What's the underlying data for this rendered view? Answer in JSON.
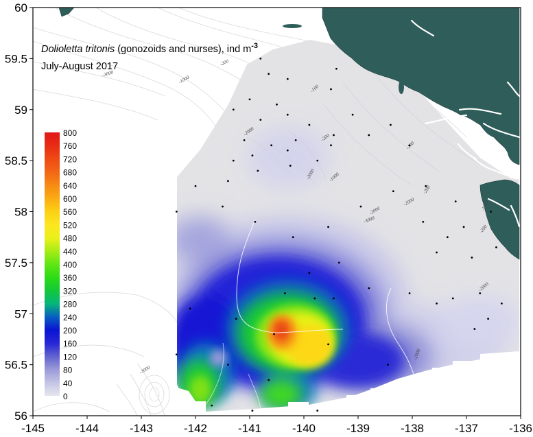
{
  "title": {
    "species": "Dolioletta tritonis",
    "rest": " (gonozoids and nurses), ind m",
    "superscript": "-3",
    "subtitle": "July-August 2017"
  },
  "map": {
    "x_axis": {
      "min": -145,
      "max": -136,
      "tick_labels": [
        "-145",
        "-144",
        "-143",
        "-142",
        "-141",
        "-140",
        "-139",
        "-138",
        "-137",
        "-136"
      ]
    },
    "y_axis": {
      "min": 56,
      "max": 60,
      "tick_labels": [
        "56",
        "56.5",
        "57",
        "57.5",
        "58",
        "58.5",
        "59",
        "59.5",
        "60"
      ]
    },
    "land_color": "#2f5d5a",
    "no_data_color": "#e3e3e6",
    "contour_labels": [
      "-3000",
      "-1000",
      "-200",
      "-100",
      "-2000",
      "-200",
      "-2000",
      "-1000",
      "-100",
      "-200",
      "-3000",
      "-2000",
      "-2000",
      "-200",
      "-2000",
      "-3000",
      "-2000",
      "-1000"
    ]
  },
  "colorbar": {
    "labels": [
      "800",
      "760",
      "720",
      "680",
      "640",
      "600",
      "560",
      "520",
      "480",
      "440",
      "400",
      "360",
      "320",
      "280",
      "240",
      "200",
      "160",
      "120",
      "80",
      "40",
      "0"
    ],
    "stops": [
      {
        "value": 0,
        "color": "#e6e6ee"
      },
      {
        "value": 40,
        "color": "#c4c4e6"
      },
      {
        "value": 80,
        "color": "#9a9ad8"
      },
      {
        "value": 120,
        "color": "#6262d0"
      },
      {
        "value": 160,
        "color": "#2626d6"
      },
      {
        "value": 200,
        "color": "#0a14d2"
      },
      {
        "value": 240,
        "color": "#0860c0"
      },
      {
        "value": 280,
        "color": "#06b67a"
      },
      {
        "value": 320,
        "color": "#12c83a"
      },
      {
        "value": 360,
        "color": "#2edc16"
      },
      {
        "value": 400,
        "color": "#60e614"
      },
      {
        "value": 440,
        "color": "#a8ec16"
      },
      {
        "value": 480,
        "color": "#ecf01a"
      },
      {
        "value": 520,
        "color": "#fde620"
      },
      {
        "value": 560,
        "color": "#fcd014"
      },
      {
        "value": 600,
        "color": "#fbab12"
      },
      {
        "value": 640,
        "color": "#f78a14"
      },
      {
        "value": 680,
        "color": "#f26616"
      },
      {
        "value": 720,
        "color": "#ee4a14"
      },
      {
        "value": 760,
        "color": "#e82c14"
      },
      {
        "value": 800,
        "color": "#e01818"
      }
    ]
  },
  "stations": [
    [
      -140.8,
      59.5
    ],
    [
      -140.3,
      59.3
    ],
    [
      -139.4,
      59.4
    ],
    [
      -140.65,
      59.35
    ],
    [
      -141.0,
      59.1
    ],
    [
      -140.5,
      59.05
    ],
    [
      -141.3,
      59.0
    ],
    [
      -140.8,
      58.9
    ],
    [
      -140.3,
      58.95
    ],
    [
      -139.5,
      59.2
    ],
    [
      -139.1,
      58.95
    ],
    [
      -139.9,
      58.85
    ],
    [
      -139.5,
      58.65
    ],
    [
      -140.15,
      58.7
    ],
    [
      -140.6,
      58.65
    ],
    [
      -141.1,
      58.7
    ],
    [
      -141.3,
      58.5
    ],
    [
      -140.95,
      58.55
    ],
    [
      -140.3,
      58.6
    ],
    [
      -138.8,
      58.75
    ],
    [
      -138.4,
      58.85
    ],
    [
      -138.05,
      58.65
    ],
    [
      -139.45,
      58.75
    ],
    [
      -139.75,
      58.5
    ],
    [
      -140.25,
      58.45
    ],
    [
      -140.85,
      58.4
    ],
    [
      -141.4,
      58.3
    ],
    [
      -142.0,
      58.25
    ],
    [
      -142.35,
      58.0
    ],
    [
      -141.5,
      58.05
    ],
    [
      -140.9,
      57.9
    ],
    [
      -140.2,
      57.75
    ],
    [
      -139.55,
      57.85
    ],
    [
      -138.95,
      58.05
    ],
    [
      -138.35,
      58.2
    ],
    [
      -137.75,
      58.25
    ],
    [
      -137.2,
      58.1
    ],
    [
      -136.55,
      58.0
    ],
    [
      -137.8,
      57.9
    ],
    [
      -137.05,
      57.85
    ],
    [
      -136.45,
      57.65
    ],
    [
      -137.35,
      57.75
    ],
    [
      -136.9,
      57.55
    ],
    [
      -137.55,
      57.6
    ],
    [
      -139.35,
      57.5
    ],
    [
      -139.9,
      57.4
    ],
    [
      -140.35,
      57.2
    ],
    [
      -139.8,
      57.15
    ],
    [
      -139.45,
      57.15
    ],
    [
      -138.8,
      57.25
    ],
    [
      -138.05,
      57.2
    ],
    [
      -137.25,
      57.15
    ],
    [
      -136.75,
      57.2
    ],
    [
      -136.35,
      57.1
    ],
    [
      -137.55,
      57.1
    ],
    [
      -136.85,
      56.85
    ],
    [
      -136.6,
      56.95
    ],
    [
      -140.55,
      56.8
    ],
    [
      -139.55,
      56.7
    ],
    [
      -141.25,
      56.95
    ],
    [
      -142.1,
      57.05
    ],
    [
      -142.35,
      56.6
    ],
    [
      -141.4,
      56.5
    ],
    [
      -140.65,
      56.35
    ],
    [
      -141.7,
      56.1
    ],
    [
      -140.95,
      56.05
    ],
    [
      -139.75,
      56.05
    ],
    [
      -138.45,
      56.5
    ]
  ]
}
